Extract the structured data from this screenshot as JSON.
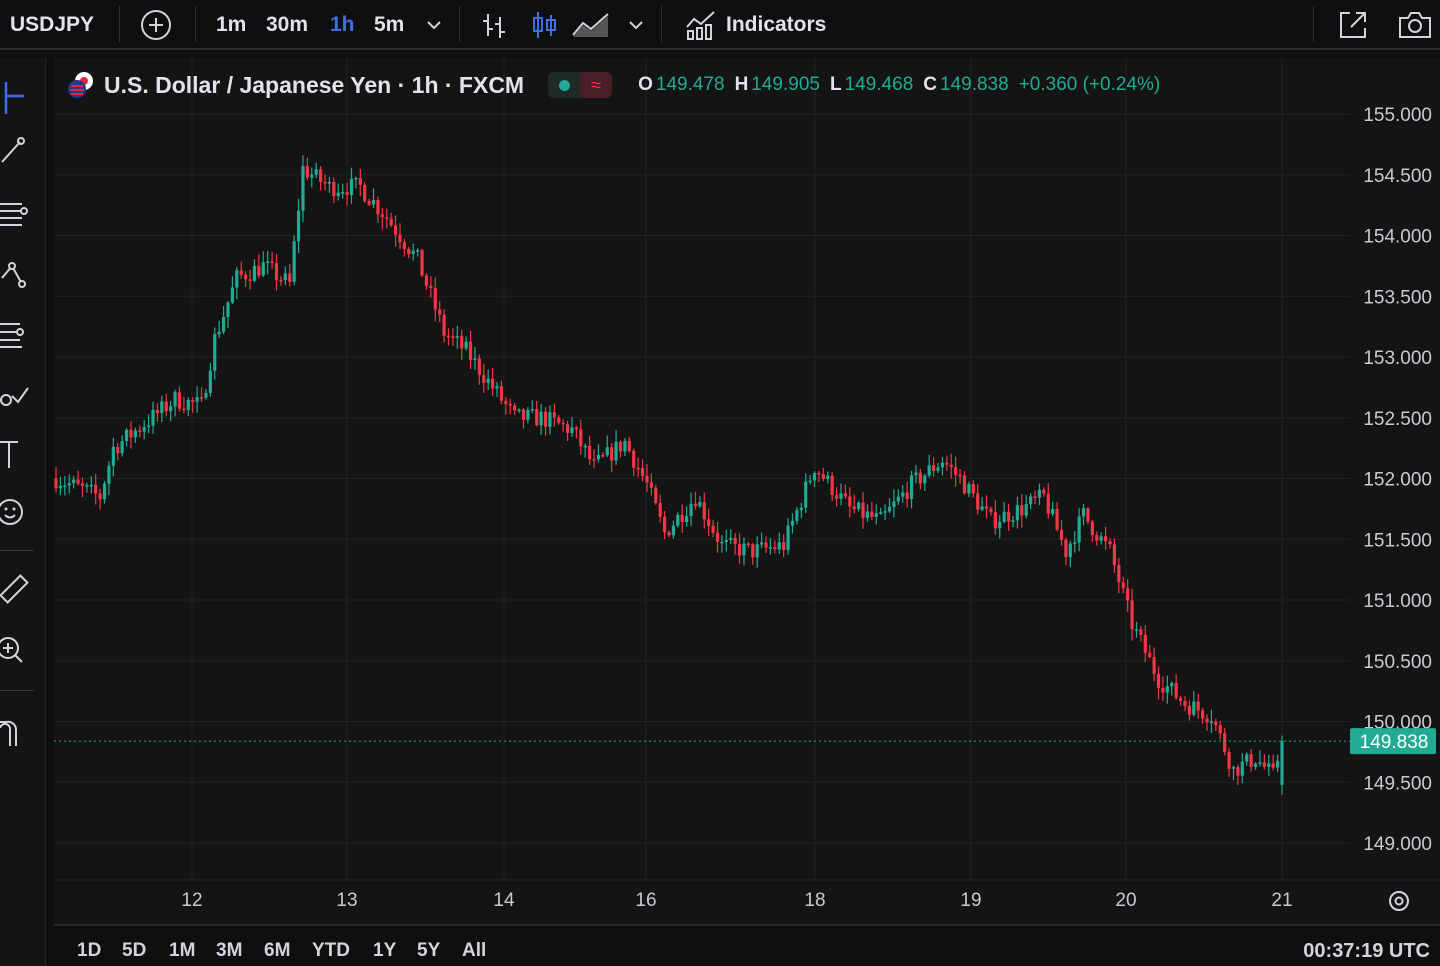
{
  "toolbar": {
    "symbol": "USDJPY",
    "timeframes": [
      "1m",
      "30m",
      "1h",
      "5m"
    ],
    "active_timeframe": "1h",
    "indicators_label": "Indicators",
    "accent_color": "#3f6fe8"
  },
  "legend": {
    "title": "U.S. Dollar / Japanese Yen · 1h · FXCM",
    "status_icon": "market-open-dot",
    "wave_icon": "≈",
    "open_label": "O",
    "open": "149.478",
    "high_label": "H",
    "high": "149.905",
    "low_label": "L",
    "low": "149.468",
    "close_label": "C",
    "close": "149.838",
    "change": "+0.360 (+0.24%)",
    "up_color": "#22ab94",
    "down_color": "#f23645"
  },
  "range_bar": {
    "ranges": [
      "1D",
      "5D",
      "1M",
      "3M",
      "6M",
      "YTD",
      "1Y",
      "5Y",
      "All"
    ],
    "time": "00:37:19 UTC"
  },
  "sidebar_tools": [
    "crosshair-icon",
    "trendline-icon",
    "fib-icon",
    "pattern-icon",
    "forecast-icon",
    "brush-icon",
    "text-icon",
    "emoji-icon",
    "ruler-icon",
    "zoom-icon",
    "magnet-icon"
  ],
  "chart_data": {
    "type": "candlestick",
    "symbol": "USDJPY",
    "interval": "1h",
    "source": "FXCM",
    "y_ticks": [
      "155.000",
      "154.500",
      "154.000",
      "153.500",
      "153.000",
      "152.500",
      "152.000",
      "151.500",
      "151.000",
      "150.500",
      "150.000",
      "149.500",
      "149.000"
    ],
    "ylim": [
      148.8,
      155.25
    ],
    "x_ticks": [
      "12",
      "13",
      "14",
      "16",
      "18",
      "19",
      "20",
      "21"
    ],
    "last_price": "149.838",
    "grid": true,
    "anchors": [
      {
        "t": 0,
        "price": 152.0
      },
      {
        "t": 10,
        "price": 151.85
      },
      {
        "t": 13,
        "price": 152.25
      },
      {
        "t": 20,
        "price": 152.45
      },
      {
        "t": 27,
        "price": 152.65
      },
      {
        "t": 33,
        "price": 152.6
      },
      {
        "t": 36,
        "price": 153.15
      },
      {
        "t": 41,
        "price": 153.65
      },
      {
        "t": 47,
        "price": 153.75
      },
      {
        "t": 53,
        "price": 153.6
      },
      {
        "t": 56,
        "price": 154.55
      },
      {
        "t": 62,
        "price": 154.4
      },
      {
        "t": 69,
        "price": 154.4
      },
      {
        "t": 75,
        "price": 154.15
      },
      {
        "t": 82,
        "price": 153.8
      },
      {
        "t": 88,
        "price": 153.2
      },
      {
        "t": 93,
        "price": 153.05
      },
      {
        "t": 98,
        "price": 152.8
      },
      {
        "t": 104,
        "price": 152.5
      },
      {
        "t": 110,
        "price": 152.5
      },
      {
        "t": 117,
        "price": 152.4
      },
      {
        "t": 122,
        "price": 152.1
      },
      {
        "t": 129,
        "price": 152.3
      },
      {
        "t": 134,
        "price": 151.95
      },
      {
        "t": 138,
        "price": 151.55
      },
      {
        "t": 145,
        "price": 151.85
      },
      {
        "t": 151,
        "price": 151.45
      },
      {
        "t": 158,
        "price": 151.4
      },
      {
        "t": 165,
        "price": 151.45
      },
      {
        "t": 172,
        "price": 152.1
      },
      {
        "t": 180,
        "price": 151.75
      },
      {
        "t": 187,
        "price": 151.65
      },
      {
        "t": 194,
        "price": 151.95
      },
      {
        "t": 201,
        "price": 152.15
      },
      {
        "t": 205,
        "price": 152.0
      },
      {
        "t": 212,
        "price": 151.65
      },
      {
        "t": 219,
        "price": 151.75
      },
      {
        "t": 224,
        "price": 151.85
      },
      {
        "t": 229,
        "price": 151.4
      },
      {
        "t": 233,
        "price": 151.7
      },
      {
        "t": 239,
        "price": 151.4
      },
      {
        "t": 244,
        "price": 150.8
      },
      {
        "t": 250,
        "price": 150.35
      },
      {
        "t": 256,
        "price": 150.15
      },
      {
        "t": 262,
        "price": 150.05
      },
      {
        "t": 267,
        "price": 149.6
      },
      {
        "t": 272,
        "price": 149.7
      },
      {
        "t": 276,
        "price": 149.55
      },
      {
        "t": 278,
        "price": 149.84
      }
    ],
    "candle_count": 279,
    "up_color": "#22ab94",
    "down_color": "#f23645"
  }
}
